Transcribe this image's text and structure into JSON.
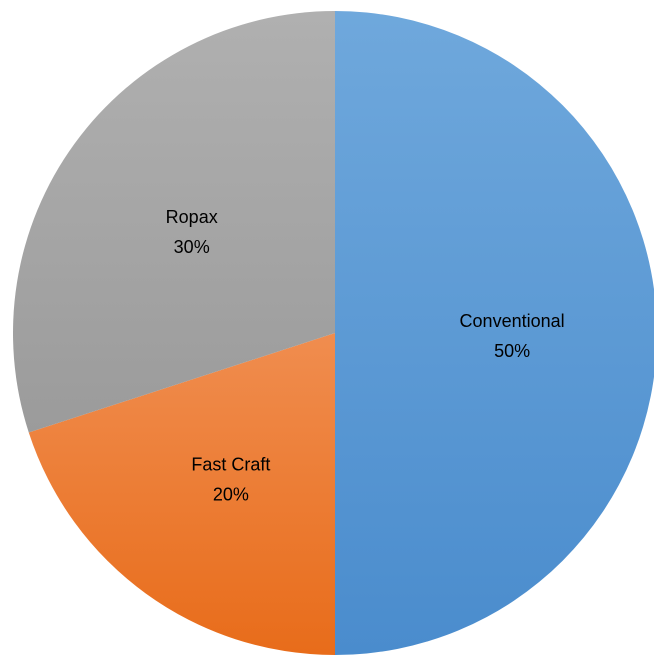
{
  "chart_data": {
    "type": "pie",
    "title": "",
    "start_angle_deg": 0,
    "direction": "clockwise",
    "legend": "none",
    "slices": [
      {
        "label": "Conventional",
        "value": 50,
        "value_label": "50%",
        "color": "#5b9bd5",
        "gradient_top": "#6fa8dc",
        "gradient_bottom": "#4a8ccd"
      },
      {
        "label": "Fast Craft",
        "value": 20,
        "value_label": "20%",
        "color": "#ed7d31",
        "gradient_top": "#f08d4f",
        "gradient_bottom": "#e86c1a"
      },
      {
        "label": "Ropax",
        "value": 30,
        "value_label": "30%",
        "color": "#a5a5a5",
        "gradient_top": "#b0b0b0",
        "gradient_bottom": "#9b9b9b"
      }
    ]
  }
}
